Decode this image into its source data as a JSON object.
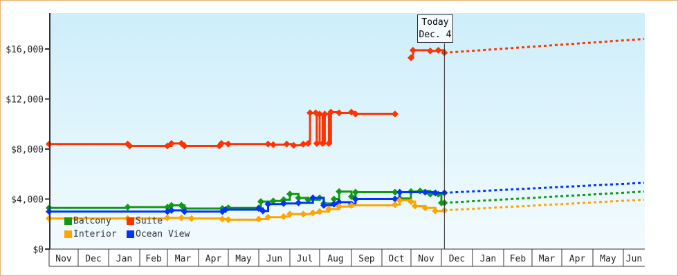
{
  "chart_data": {
    "type": "line",
    "title": "",
    "xlabel": "",
    "ylabel": "",
    "ylim": [
      0,
      18500
    ],
    "yticks": [
      "$0",
      "$4,000",
      "$8,000",
      "$12,000",
      "$16,000"
    ],
    "ytick_values": [
      0,
      4000,
      8000,
      12000,
      16000
    ],
    "xticks": [
      "Nov",
      "Dec",
      "Jan",
      "Feb",
      "Mar",
      "Apr",
      "May",
      "Jun",
      "Jul",
      "Aug",
      "Sep",
      "Oct",
      "Nov",
      "Dec",
      "Jan",
      "Feb",
      "Mar",
      "Apr",
      "May",
      "Jun"
    ],
    "today": {
      "line1": "Today",
      "line2": "Dec. 4",
      "date": "2014-12-04"
    },
    "legend_position": "bottom-left",
    "series": [
      {
        "name": "Balcony",
        "color": "#119911",
        "points": [
          [
            "2013-11-01",
            3300
          ],
          [
            "2014-01-20",
            3350
          ],
          [
            "2014-03-01",
            3350
          ],
          [
            "2014-03-05",
            3500
          ],
          [
            "2014-03-15",
            3500
          ],
          [
            "2014-03-18",
            3250
          ],
          [
            "2014-04-25",
            3250
          ],
          [
            "2014-05-01",
            3300
          ],
          [
            "2014-06-01",
            3300
          ],
          [
            "2014-06-03",
            3800
          ],
          [
            "2014-06-15",
            3850
          ],
          [
            "2014-06-25",
            3950
          ],
          [
            "2014-07-01",
            4400
          ],
          [
            "2014-07-10",
            4100
          ],
          [
            "2014-07-20",
            3950
          ],
          [
            "2014-08-01",
            4100
          ],
          [
            "2014-08-05",
            3650
          ],
          [
            "2014-08-15",
            4000
          ],
          [
            "2014-08-20",
            4600
          ],
          [
            "2014-09-01",
            4200
          ],
          [
            "2014-09-05",
            4550
          ],
          [
            "2014-10-15",
            4550
          ],
          [
            "2014-10-20",
            4050
          ],
          [
            "2014-11-01",
            4600
          ],
          [
            "2014-11-10",
            4650
          ],
          [
            "2014-11-20",
            4400
          ],
          [
            "2014-11-28",
            4400
          ],
          [
            "2014-12-01",
            3700
          ],
          [
            "2014-12-04",
            3700
          ]
        ],
        "forecast": [
          [
            "2014-12-04",
            3700
          ],
          [
            "2015-06-30",
            4600
          ]
        ]
      },
      {
        "name": "Suite",
        "color": "#ff3300",
        "points": [
          [
            "2013-11-01",
            8400
          ],
          [
            "2014-01-20",
            8400
          ],
          [
            "2014-01-22",
            8250
          ],
          [
            "2014-03-01",
            8250
          ],
          [
            "2014-03-05",
            8450
          ],
          [
            "2014-03-15",
            8450
          ],
          [
            "2014-03-18",
            8250
          ],
          [
            "2014-04-22",
            8250
          ],
          [
            "2014-04-24",
            8450
          ],
          [
            "2014-05-01",
            8400
          ],
          [
            "2014-06-10",
            8400
          ],
          [
            "2014-06-15",
            8350
          ],
          [
            "2014-06-28",
            8400
          ],
          [
            "2014-07-05",
            8300
          ],
          [
            "2014-07-15",
            8400
          ],
          [
            "2014-07-20",
            8450
          ],
          [
            "2014-07-22",
            10900
          ],
          [
            "2014-07-28",
            10900
          ],
          [
            "2014-07-29",
            8450
          ],
          [
            "2014-08-01",
            10800
          ],
          [
            "2014-08-04",
            8450
          ],
          [
            "2014-08-06",
            10800
          ],
          [
            "2014-08-10",
            8450
          ],
          [
            "2014-08-12",
            10950
          ],
          [
            "2014-08-20",
            10900
          ],
          [
            "2014-09-01",
            10950
          ],
          [
            "2014-09-05",
            10800
          ],
          [
            "2014-10-15",
            10800
          ]
        ],
        "segment2": [
          [
            "2014-11-01",
            15300
          ],
          [
            "2014-11-03",
            15900
          ],
          [
            "2014-11-20",
            15850
          ],
          [
            "2014-11-28",
            15900
          ],
          [
            "2014-12-04",
            15700
          ]
        ],
        "forecast": [
          [
            "2014-12-04",
            15700
          ],
          [
            "2015-06-30",
            16800
          ]
        ]
      },
      {
        "name": "Interior",
        "color": "#ffa500",
        "points": [
          [
            "2013-11-01",
            2450
          ],
          [
            "2014-01-20",
            2450
          ],
          [
            "2014-03-01",
            2500
          ],
          [
            "2014-03-15",
            2500
          ],
          [
            "2014-03-25",
            2450
          ],
          [
            "2014-04-25",
            2400
          ],
          [
            "2014-05-01",
            2350
          ],
          [
            "2014-06-01",
            2400
          ],
          [
            "2014-06-10",
            2550
          ],
          [
            "2014-06-25",
            2600
          ],
          [
            "2014-07-01",
            2800
          ],
          [
            "2014-07-15",
            2800
          ],
          [
            "2014-07-25",
            2900
          ],
          [
            "2014-08-01",
            3000
          ],
          [
            "2014-08-10",
            3200
          ],
          [
            "2014-08-20",
            3400
          ],
          [
            "2014-09-01",
            3500
          ],
          [
            "2014-10-15",
            3550
          ],
          [
            "2014-10-20",
            3900
          ],
          [
            "2014-11-01",
            3800
          ],
          [
            "2014-11-05",
            3450
          ],
          [
            "2014-11-15",
            3300
          ],
          [
            "2014-11-25",
            3050
          ],
          [
            "2014-12-04",
            3100
          ]
        ],
        "forecast": [
          [
            "2014-12-04",
            3100
          ],
          [
            "2015-06-30",
            3950
          ]
        ]
      },
      {
        "name": "Ocean View",
        "color": "#0033ff",
        "points": [
          [
            "2013-11-01",
            3000
          ],
          [
            "2014-03-01",
            3000
          ],
          [
            "2014-03-05",
            3100
          ],
          [
            "2014-03-18",
            3000
          ],
          [
            "2014-04-25",
            3000
          ],
          [
            "2014-04-28",
            3150
          ],
          [
            "2014-06-01",
            3250
          ],
          [
            "2014-06-05",
            3050
          ],
          [
            "2014-06-10",
            3600
          ],
          [
            "2014-06-25",
            3650
          ],
          [
            "2014-07-10",
            3700
          ],
          [
            "2014-07-25",
            4100
          ],
          [
            "2014-08-05",
            3500
          ],
          [
            "2014-08-15",
            3600
          ],
          [
            "2014-08-20",
            3750
          ],
          [
            "2014-09-01",
            3600
          ],
          [
            "2014-09-05",
            4000
          ],
          [
            "2014-10-15",
            4000
          ],
          [
            "2014-10-20",
            4550
          ],
          [
            "2014-11-15",
            4550
          ],
          [
            "2014-11-25",
            4500
          ],
          [
            "2014-12-04",
            4500
          ]
        ],
        "forecast": [
          [
            "2014-12-04",
            4500
          ],
          [
            "2015-06-30",
            5300
          ]
        ]
      }
    ]
  }
}
